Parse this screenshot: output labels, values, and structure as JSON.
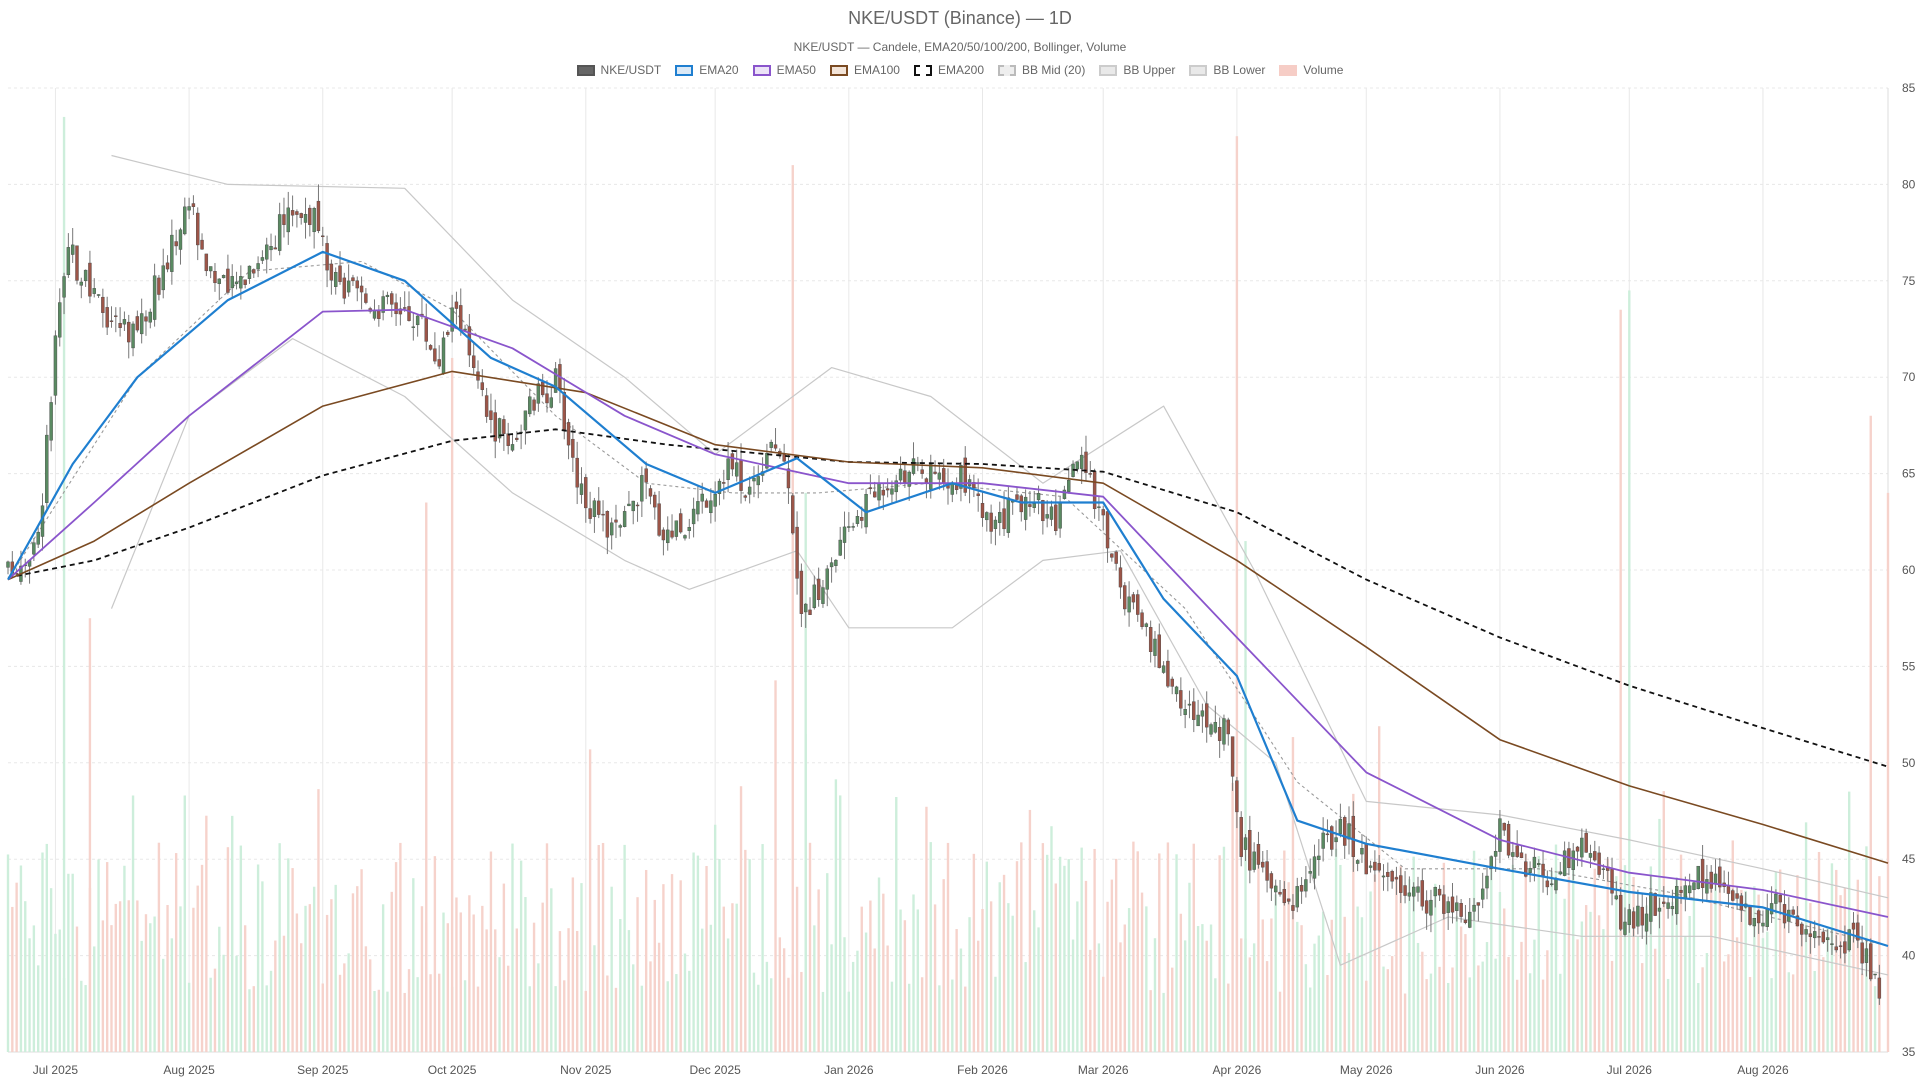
{
  "chart_data": {
    "type": "candlestick",
    "title": "NKE/USDT (Binance) — 1D",
    "subtitle": "NKE/USDT — Candele, EMA20/50/100/200, Bollinger, Volume",
    "ylim": [
      35,
      85
    ],
    "y_ticks": [
      35,
      40,
      45,
      50,
      55,
      60,
      65,
      70,
      75,
      80,
      85
    ],
    "x_range": [
      "2025-06-20",
      "2026-08-30"
    ],
    "x_ticks": [
      {
        "label": "Jul 2025",
        "date": "2025-07-01"
      },
      {
        "label": "Aug 2025",
        "date": "2025-08-01"
      },
      {
        "label": "Sep 2025",
        "date": "2025-09-01"
      },
      {
        "label": "Oct 2025",
        "date": "2025-10-01"
      },
      {
        "label": "Nov 2025",
        "date": "2025-11-01"
      },
      {
        "label": "Dec 2025",
        "date": "2025-12-01"
      },
      {
        "label": "Jan 2026",
        "date": "2026-01-01"
      },
      {
        "label": "Feb 2026",
        "date": "2026-02-01"
      },
      {
        "label": "Mar 2026",
        "date": "2026-03-01"
      },
      {
        "label": "Apr 2026",
        "date": "2026-04-01"
      },
      {
        "label": "May 2026",
        "date": "2026-05-01"
      },
      {
        "label": "Jun 2026",
        "date": "2026-06-01"
      },
      {
        "label": "Jul 2026",
        "date": "2026-07-01"
      },
      {
        "label": "Aug 2026",
        "date": "2026-08-01"
      }
    ],
    "grid": true,
    "legend_position": "top-center",
    "legend": [
      {
        "key": "price",
        "label": "NKE/USDT",
        "fill": "#666666",
        "stroke": "#555555",
        "dash": ""
      },
      {
        "key": "ema20",
        "label": "EMA20",
        "fill": "#dbe9f6",
        "stroke": "#1f7fd0",
        "dash": ""
      },
      {
        "key": "ema50",
        "label": "EMA50",
        "fill": "#ece3f7",
        "stroke": "#8a55cc",
        "dash": ""
      },
      {
        "key": "ema100",
        "label": "EMA100",
        "fill": "#f3e4d8",
        "stroke": "#7a4a22",
        "dash": ""
      },
      {
        "key": "ema200",
        "label": "EMA200",
        "fill": "#ffffff",
        "stroke": "#111111",
        "dash": "4 3"
      },
      {
        "key": "bbmid",
        "label": "BB Mid (20)",
        "fill": "#eeeeee",
        "stroke": "#bbbbbb",
        "dash": "3 2"
      },
      {
        "key": "bbup",
        "label": "BB Upper",
        "fill": "#e9e9e9",
        "stroke": "#cccccc",
        "dash": ""
      },
      {
        "key": "bblow",
        "label": "BB Lower",
        "fill": "#e9e9e9",
        "stroke": "#cccccc",
        "dash": ""
      },
      {
        "key": "volume",
        "label": "Volume",
        "fill": "#f6cdc6",
        "stroke": "#f6cdc6",
        "dash": ""
      }
    ],
    "colors": {
      "up": "#5a8a62",
      "down": "#9c5548",
      "wick": "#777777",
      "vol_up": "#cdeedb",
      "vol_down": "#f6d2cb",
      "ema20": "#1f7fd0",
      "ema50": "#8a55cc",
      "ema100": "#7a4a22",
      "ema200": "#111111",
      "bb": "#c8c8c8",
      "grid": "#e8e8e8"
    },
    "price_path": [
      {
        "date": "2025-06-20",
        "close": 59.8
      },
      {
        "date": "2025-06-27",
        "close": 61.5
      },
      {
        "date": "2025-07-01",
        "close": 71.5
      },
      {
        "date": "2025-07-04",
        "close": 76.5
      },
      {
        "date": "2025-07-10",
        "close": 74.0
      },
      {
        "date": "2025-07-15",
        "close": 72.8
      },
      {
        "date": "2025-07-20",
        "close": 72.5
      },
      {
        "date": "2025-07-26",
        "close": 75.5
      },
      {
        "date": "2025-08-01",
        "close": 79.2
      },
      {
        "date": "2025-08-05",
        "close": 76.0
      },
      {
        "date": "2025-08-10",
        "close": 74.2
      },
      {
        "date": "2025-08-15",
        "close": 75.8
      },
      {
        "date": "2025-08-20",
        "close": 77.0
      },
      {
        "date": "2025-08-25",
        "close": 78.8
      },
      {
        "date": "2025-08-30",
        "close": 78.3
      },
      {
        "date": "2025-09-03",
        "close": 74.8
      },
      {
        "date": "2025-09-08",
        "close": 74.3
      },
      {
        "date": "2025-09-13",
        "close": 73.8
      },
      {
        "date": "2025-09-18",
        "close": 73.6
      },
      {
        "date": "2025-09-23",
        "close": 73.2
      },
      {
        "date": "2025-09-28",
        "close": 70.8
      },
      {
        "date": "2025-10-02",
        "close": 74.0
      },
      {
        "date": "2025-10-06",
        "close": 70.0
      },
      {
        "date": "2025-10-10",
        "close": 67.5
      },
      {
        "date": "2025-10-15",
        "close": 66.8
      },
      {
        "date": "2025-10-20",
        "close": 68.8
      },
      {
        "date": "2025-10-25",
        "close": 69.8
      },
      {
        "date": "2025-10-30",
        "close": 64.8
      },
      {
        "date": "2025-11-04",
        "close": 62.3
      },
      {
        "date": "2025-11-09",
        "close": 62.0
      },
      {
        "date": "2025-11-14",
        "close": 64.5
      },
      {
        "date": "2025-11-19",
        "close": 62.0
      },
      {
        "date": "2025-11-24",
        "close": 62.5
      },
      {
        "date": "2025-11-29",
        "close": 64.0
      },
      {
        "date": "2025-12-04",
        "close": 65.5
      },
      {
        "date": "2025-12-09",
        "close": 64.2
      },
      {
        "date": "2025-12-14",
        "close": 67.0
      },
      {
        "date": "2025-12-18",
        "close": 65.0
      },
      {
        "date": "2025-12-21",
        "close": 57.5
      },
      {
        "date": "2025-12-27",
        "close": 59.8
      },
      {
        "date": "2026-01-03",
        "close": 63.0
      },
      {
        "date": "2026-01-08",
        "close": 64.3
      },
      {
        "date": "2026-01-13",
        "close": 65.3
      },
      {
        "date": "2026-01-18",
        "close": 65.0
      },
      {
        "date": "2026-01-23",
        "close": 64.3
      },
      {
        "date": "2026-01-28",
        "close": 64.8
      },
      {
        "date": "2026-02-03",
        "close": 62.0
      },
      {
        "date": "2026-02-08",
        "close": 63.2
      },
      {
        "date": "2026-02-13",
        "close": 64.0
      },
      {
        "date": "2026-02-18",
        "close": 62.2
      },
      {
        "date": "2026-02-23",
        "close": 65.8
      },
      {
        "date": "2026-02-28",
        "close": 63.5
      },
      {
        "date": "2026-03-05",
        "close": 59.0
      },
      {
        "date": "2026-03-10",
        "close": 56.8
      },
      {
        "date": "2026-03-15",
        "close": 55.0
      },
      {
        "date": "2026-03-20",
        "close": 52.8
      },
      {
        "date": "2026-03-25",
        "close": 52.3
      },
      {
        "date": "2026-03-30",
        "close": 51.5
      },
      {
        "date": "2026-04-02",
        "close": 45.8
      },
      {
        "date": "2026-04-08",
        "close": 43.5
      },
      {
        "date": "2026-04-14",
        "close": 43.0
      },
      {
        "date": "2026-04-20",
        "close": 45.5
      },
      {
        "date": "2026-04-26",
        "close": 46.5
      },
      {
        "date": "2026-05-02",
        "close": 44.5
      },
      {
        "date": "2026-05-08",
        "close": 44.0
      },
      {
        "date": "2026-05-14",
        "close": 43.0
      },
      {
        "date": "2026-05-20",
        "close": 42.8
      },
      {
        "date": "2026-05-26",
        "close": 42.0
      },
      {
        "date": "2026-06-01",
        "close": 46.5
      },
      {
        "date": "2026-06-07",
        "close": 44.8
      },
      {
        "date": "2026-06-13",
        "close": 44.0
      },
      {
        "date": "2026-06-19",
        "close": 45.8
      },
      {
        "date": "2026-06-25",
        "close": 44.5
      },
      {
        "date": "2026-06-30",
        "close": 41.5
      },
      {
        "date": "2026-07-06",
        "close": 42.8
      },
      {
        "date": "2026-07-12",
        "close": 43.2
      },
      {
        "date": "2026-07-18",
        "close": 44.0
      },
      {
        "date": "2026-07-24",
        "close": 43.5
      },
      {
        "date": "2026-07-30",
        "close": 42.0
      },
      {
        "date": "2026-08-05",
        "close": 42.5
      },
      {
        "date": "2026-08-11",
        "close": 41.2
      },
      {
        "date": "2026-08-17",
        "close": 41.0
      },
      {
        "date": "2026-08-23",
        "close": 40.8
      },
      {
        "date": "2026-08-28",
        "close": 38.5
      }
    ],
    "ema200": [
      {
        "date": "2025-06-20",
        "value": 59.6
      },
      {
        "date": "2025-07-10",
        "value": 60.5
      },
      {
        "date": "2025-08-01",
        "value": 62.2
      },
      {
        "date": "2025-09-01",
        "value": 64.9
      },
      {
        "date": "2025-10-01",
        "value": 66.7
      },
      {
        "date": "2025-10-25",
        "value": 67.3
      },
      {
        "date": "2025-11-20",
        "value": 66.5
      },
      {
        "date": "2026-01-01",
        "value": 65.6
      },
      {
        "date": "2026-02-01",
        "value": 65.5
      },
      {
        "date": "2026-03-01",
        "value": 65.1
      },
      {
        "date": "2026-04-01",
        "value": 63.0
      },
      {
        "date": "2026-05-01",
        "value": 59.5
      },
      {
        "date": "2026-06-01",
        "value": 56.5
      },
      {
        "date": "2026-07-01",
        "value": 54.0
      },
      {
        "date": "2026-08-01",
        "value": 51.8
      },
      {
        "date": "2026-08-30",
        "value": 49.8
      }
    ],
    "ema100": [
      {
        "date": "2025-06-20",
        "value": 59.5
      },
      {
        "date": "2025-07-10",
        "value": 61.5
      },
      {
        "date": "2025-08-01",
        "value": 64.5
      },
      {
        "date": "2025-09-01",
        "value": 68.5
      },
      {
        "date": "2025-10-01",
        "value": 70.3
      },
      {
        "date": "2025-11-01",
        "value": 69.2
      },
      {
        "date": "2025-12-01",
        "value": 66.5
      },
      {
        "date": "2026-01-01",
        "value": 65.6
      },
      {
        "date": "2026-02-01",
        "value": 65.3
      },
      {
        "date": "2026-03-01",
        "value": 64.5
      },
      {
        "date": "2026-04-01",
        "value": 60.5
      },
      {
        "date": "2026-05-01",
        "value": 56.0
      },
      {
        "date": "2026-06-01",
        "value": 51.2
      },
      {
        "date": "2026-07-01",
        "value": 48.8
      },
      {
        "date": "2026-08-01",
        "value": 46.8
      },
      {
        "date": "2026-08-30",
        "value": 44.8
      }
    ],
    "ema50": [
      {
        "date": "2025-06-20",
        "value": 59.5
      },
      {
        "date": "2025-07-10",
        "value": 63.5
      },
      {
        "date": "2025-08-01",
        "value": 68.0
      },
      {
        "date": "2025-09-01",
        "value": 73.4
      },
      {
        "date": "2025-09-20",
        "value": 73.5
      },
      {
        "date": "2025-10-15",
        "value": 71.5
      },
      {
        "date": "2025-11-10",
        "value": 68.0
      },
      {
        "date": "2025-12-01",
        "value": 66.0
      },
      {
        "date": "2026-01-01",
        "value": 64.5
      },
      {
        "date": "2026-02-01",
        "value": 64.5
      },
      {
        "date": "2026-03-01",
        "value": 63.8
      },
      {
        "date": "2026-04-01",
        "value": 56.5
      },
      {
        "date": "2026-05-01",
        "value": 49.5
      },
      {
        "date": "2026-06-01",
        "value": 46.0
      },
      {
        "date": "2026-07-01",
        "value": 44.3
      },
      {
        "date": "2026-08-01",
        "value": 43.4
      },
      {
        "date": "2026-08-30",
        "value": 42.0
      }
    ],
    "ema20": [
      {
        "date": "2025-06-20",
        "value": 59.5
      },
      {
        "date": "2025-07-05",
        "value": 65.5
      },
      {
        "date": "2025-07-20",
        "value": 70.0
      },
      {
        "date": "2025-08-10",
        "value": 74.0
      },
      {
        "date": "2025-09-01",
        "value": 76.5
      },
      {
        "date": "2025-09-20",
        "value": 75.0
      },
      {
        "date": "2025-10-10",
        "value": 71.0
      },
      {
        "date": "2025-10-25",
        "value": 69.5
      },
      {
        "date": "2025-11-15",
        "value": 65.5
      },
      {
        "date": "2025-12-01",
        "value": 64.0
      },
      {
        "date": "2025-12-20",
        "value": 65.8
      },
      {
        "date": "2026-01-05",
        "value": 63.0
      },
      {
        "date": "2026-01-25",
        "value": 64.5
      },
      {
        "date": "2026-02-10",
        "value": 63.5
      },
      {
        "date": "2026-03-01",
        "value": 63.5
      },
      {
        "date": "2026-03-15",
        "value": 58.5
      },
      {
        "date": "2026-04-01",
        "value": 54.5
      },
      {
        "date": "2026-04-15",
        "value": 47.0
      },
      {
        "date": "2026-05-01",
        "value": 45.8
      },
      {
        "date": "2026-06-01",
        "value": 44.5
      },
      {
        "date": "2026-07-01",
        "value": 43.3
      },
      {
        "date": "2026-08-01",
        "value": 42.5
      },
      {
        "date": "2026-08-30",
        "value": 40.5
      }
    ],
    "bb_upper": [
      {
        "date": "2025-07-14",
        "value": 81.5
      },
      {
        "date": "2025-08-10",
        "value": 80.0
      },
      {
        "date": "2025-09-20",
        "value": 79.8
      },
      {
        "date": "2025-10-15",
        "value": 74.0
      },
      {
        "date": "2025-11-10",
        "value": 70.0
      },
      {
        "date": "2025-12-01",
        "value": 66.0
      },
      {
        "date": "2025-12-28",
        "value": 70.5
      },
      {
        "date": "2026-01-20",
        "value": 69.0
      },
      {
        "date": "2026-02-15",
        "value": 64.5
      },
      {
        "date": "2026-03-15",
        "value": 68.5
      },
      {
        "date": "2026-04-05",
        "value": 60.0
      },
      {
        "date": "2026-05-01",
        "value": 48.0
      },
      {
        "date": "2026-06-01",
        "value": 47.3
      },
      {
        "date": "2026-07-01",
        "value": 46.0
      },
      {
        "date": "2026-08-01",
        "value": 44.5
      },
      {
        "date": "2026-08-30",
        "value": 43.0
      }
    ],
    "bb_mid": [
      {
        "date": "2025-06-20",
        "value": 59.5
      },
      {
        "date": "2025-07-20",
        "value": 70.0
      },
      {
        "date": "2025-08-15",
        "value": 75.5
      },
      {
        "date": "2025-09-10",
        "value": 76.0
      },
      {
        "date": "2025-10-01",
        "value": 73.5
      },
      {
        "date": "2025-10-25",
        "value": 68.0
      },
      {
        "date": "2025-11-15",
        "value": 64.5
      },
      {
        "date": "2025-12-05",
        "value": 64.0
      },
      {
        "date": "2025-12-25",
        "value": 64.0
      },
      {
        "date": "2026-01-20",
        "value": 64.5
      },
      {
        "date": "2026-02-20",
        "value": 63.8
      },
      {
        "date": "2026-03-20",
        "value": 58.0
      },
      {
        "date": "2026-04-15",
        "value": 49.0
      },
      {
        "date": "2026-05-10",
        "value": 44.5
      },
      {
        "date": "2026-06-10",
        "value": 44.5
      },
      {
        "date": "2026-07-10",
        "value": 43.3
      },
      {
        "date": "2026-08-30",
        "value": 40.5
      }
    ],
    "bb_lower": [
      {
        "date": "2025-07-14",
        "value": 58.0
      },
      {
        "date": "2025-08-01",
        "value": 68.0
      },
      {
        "date": "2025-08-25",
        "value": 72.0
      },
      {
        "date": "2025-09-20",
        "value": 69.0
      },
      {
        "date": "2025-10-15",
        "value": 64.0
      },
      {
        "date": "2025-11-10",
        "value": 60.5
      },
      {
        "date": "2025-11-25",
        "value": 59.0
      },
      {
        "date": "2025-12-20",
        "value": 61.0
      },
      {
        "date": "2026-01-01",
        "value": 57.0
      },
      {
        "date": "2026-01-25",
        "value": 57.0
      },
      {
        "date": "2026-02-15",
        "value": 60.5
      },
      {
        "date": "2026-03-05",
        "value": 61.0
      },
      {
        "date": "2026-03-25",
        "value": 53.0
      },
      {
        "date": "2026-04-10",
        "value": 50.0
      },
      {
        "date": "2026-04-25",
        "value": 39.5
      },
      {
        "date": "2026-05-20",
        "value": 42.0
      },
      {
        "date": "2026-06-20",
        "value": 41.0
      },
      {
        "date": "2026-07-20",
        "value": 41.0
      },
      {
        "date": "2026-08-30",
        "value": 39.0
      }
    ],
    "volume_ylim": [
      0,
      100
    ],
    "volume_spikes": [
      {
        "date": "2025-07-03",
        "value": 97,
        "up": true
      },
      {
        "date": "2025-07-09",
        "value": 45,
        "up": false
      },
      {
        "date": "2025-10-01",
        "value": 72,
        "up": false
      },
      {
        "date": "2025-09-25",
        "value": 57,
        "up": false
      },
      {
        "date": "2025-12-19",
        "value": 92,
        "up": false
      },
      {
        "date": "2025-12-22",
        "value": 58,
        "up": true
      },
      {
        "date": "2026-04-01",
        "value": 95,
        "up": false
      },
      {
        "date": "2026-04-03",
        "value": 53,
        "up": true
      },
      {
        "date": "2026-06-29",
        "value": 77,
        "up": false
      },
      {
        "date": "2026-07-01",
        "value": 79,
        "up": true
      },
      {
        "date": "2026-08-26",
        "value": 66,
        "up": false
      },
      {
        "date": "2026-08-30",
        "value": 58,
        "up": false
      }
    ]
  }
}
